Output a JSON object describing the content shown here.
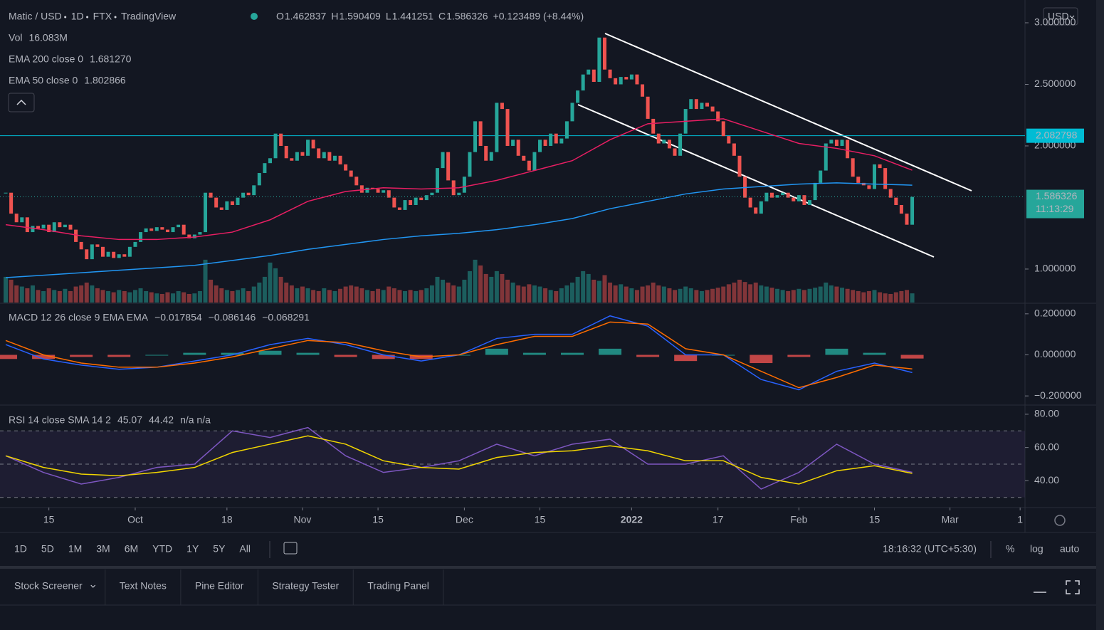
{
  "header": {
    "symbol": "Matic / USD",
    "interval": "1D",
    "exchange": "FTX",
    "source": "TradingView",
    "ohlc": [
      {
        "key": "O",
        "value": "1.462837"
      },
      {
        "key": "H",
        "value": "1.590409"
      },
      {
        "key": "L",
        "value": "1.441251"
      },
      {
        "key": "C",
        "value": "1.586326"
      }
    ],
    "change": "+0.123489 (+8.44%)",
    "currency": "USD"
  },
  "chart_data": {
    "type": "candlestick",
    "xlim": [
      -1.06,
      188.9
    ],
    "xticks": [
      {
        "value": 8,
        "label": "15"
      },
      {
        "value": 24,
        "label": "Oct"
      },
      {
        "value": 41,
        "label": "18"
      },
      {
        "value": 55,
        "label": "Nov"
      },
      {
        "value": 69,
        "label": "15"
      },
      {
        "value": 85,
        "label": "Dec"
      },
      {
        "value": 99,
        "label": "15"
      },
      {
        "value": 116,
        "label": "2022"
      },
      {
        "value": 132,
        "label": "17"
      },
      {
        "value": 147,
        "label": "Feb"
      },
      {
        "value": 161,
        "label": "15"
      },
      {
        "value": 175,
        "label": "Mar"
      },
      {
        "value": 188,
        "label": "1"
      }
    ],
    "ylim": [
      0.728,
      3.185
    ],
    "yticks": [
      {
        "value": 1,
        "label": "1.000000"
      },
      {
        "value": 2,
        "label": "2.000000"
      },
      {
        "value": 2.5,
        "label": "2.500000"
      },
      {
        "value": 3,
        "label": "3.000000"
      }
    ],
    "up_color": "#26a69a",
    "down_color": "#ef5350",
    "close": [
      1.62,
      1.45,
      1.38,
      1.42,
      1.3,
      1.35,
      1.33,
      1.36,
      1.3,
      1.38,
      1.34,
      1.36,
      1.32,
      1.22,
      1.16,
      1.08,
      1.2,
      1.18,
      1.1,
      1.14,
      1.09,
      1.12,
      1.1,
      1.18,
      1.22,
      1.3,
      1.33,
      1.31,
      1.34,
      1.32,
      1.3,
      1.34,
      1.36,
      1.28,
      1.25,
      1.28,
      1.3,
      1.62,
      1.58,
      1.5,
      1.48,
      1.55,
      1.52,
      1.58,
      1.62,
      1.6,
      1.68,
      1.78,
      1.86,
      1.9,
      2.1,
      2.0,
      1.9,
      1.88,
      1.95,
      1.92,
      2.05,
      1.98,
      1.9,
      1.95,
      1.88,
      1.92,
      1.85,
      1.8,
      1.75,
      1.68,
      1.62,
      1.66,
      1.65,
      1.62,
      1.64,
      1.58,
      1.5,
      1.48,
      1.56,
      1.52,
      1.58,
      1.56,
      1.6,
      1.62,
      1.82,
      1.95,
      1.72,
      1.6,
      1.62,
      1.75,
      1.95,
      2.2,
      2.0,
      1.88,
      1.95,
      2.35,
      2.3,
      2.0,
      2.05,
      1.92,
      1.88,
      1.8,
      1.95,
      2.05,
      2.0,
      2.1,
      2.02,
      2.06,
      2.2,
      2.35,
      2.45,
      2.58,
      2.62,
      2.52,
      2.88,
      2.62,
      2.55,
      2.5,
      2.56,
      2.54,
      2.58,
      2.5,
      2.4,
      2.22,
      2.1,
      2.02,
      2.05,
      1.98,
      1.92,
      2.1,
      2.3,
      2.38,
      2.3,
      2.35,
      2.32,
      2.28,
      2.2,
      2.08,
      2.02,
      1.92,
      1.75,
      1.58,
      1.5,
      1.45,
      1.55,
      1.62,
      1.58,
      1.6,
      1.62,
      1.58,
      1.55,
      1.6,
      1.52,
      1.56,
      1.7,
      1.8,
      2.02,
      2.05,
      2.0,
      2.05,
      1.9,
      1.75,
      1.7,
      1.68,
      1.65,
      1.85,
      1.82,
      1.65,
      1.58,
      1.52,
      1.45,
      1.36,
      1.586326
    ],
    "countdown": "11:13:29",
    "hline": 2.082798,
    "volume": {
      "name": "Vol",
      "value_label": "16.083M",
      "ylim": [
        0,
        530
      ],
      "values": [
        45,
        40,
        30,
        28,
        25,
        30,
        22,
        20,
        25,
        22,
        20,
        24,
        20,
        28,
        30,
        35,
        30,
        25,
        22,
        20,
        18,
        22,
        20,
        18,
        22,
        25,
        20,
        18,
        16,
        15,
        18,
        16,
        20,
        18,
        15,
        16,
        20,
        75,
        40,
        30,
        25,
        22,
        20,
        22,
        25,
        20,
        28,
        35,
        45,
        70,
        60,
        45,
        35,
        30,
        25,
        28,
        25,
        22,
        20,
        25,
        22,
        20,
        24,
        28,
        30,
        28,
        25,
        22,
        20,
        24,
        22,
        28,
        25,
        22,
        20,
        22,
        20,
        22,
        25,
        30,
        45,
        40,
        35,
        30,
        28,
        40,
        55,
        75,
        65,
        50,
        45,
        55,
        50,
        40,
        35,
        30,
        28,
        32,
        30,
        28,
        25,
        22,
        20,
        25,
        30,
        35,
        45,
        55,
        50,
        40,
        38,
        48,
        35,
        30,
        32,
        28,
        25,
        22,
        28,
        30,
        35,
        30,
        28,
        25,
        22,
        24,
        28,
        25,
        22,
        20,
        22,
        24,
        26,
        28,
        32,
        35,
        40,
        36,
        32,
        35,
        30,
        28,
        26,
        24,
        22,
        20,
        22,
        24,
        22,
        24,
        26,
        28,
        35,
        30,
        28,
        26,
        24,
        22,
        20,
        18,
        20,
        22,
        18,
        16,
        15,
        18,
        20,
        22,
        16.083
      ]
    },
    "sample_x": [
      0,
      7,
      14,
      21,
      28,
      35,
      42,
      49,
      56,
      63,
      70,
      77,
      84,
      91,
      98,
      105,
      112,
      119,
      126,
      133,
      140,
      147,
      154,
      161,
      168
    ],
    "ema": [
      {
        "name": "EMA 200 close 0",
        "color": "#2196f3",
        "value_label": "1.681270",
        "values": [
          0.93,
          0.95,
          0.97,
          0.99,
          1.01,
          1.03,
          1.07,
          1.11,
          1.16,
          1.2,
          1.24,
          1.27,
          1.29,
          1.32,
          1.36,
          1.41,
          1.49,
          1.55,
          1.61,
          1.65,
          1.67,
          1.69,
          1.7,
          1.69,
          1.68127
        ]
      },
      {
        "name": "EMA 50 close 0",
        "color": "#e91e63",
        "value_label": "1.802866",
        "values": [
          1.36,
          1.32,
          1.27,
          1.24,
          1.24,
          1.26,
          1.3,
          1.4,
          1.55,
          1.63,
          1.66,
          1.65,
          1.66,
          1.72,
          1.8,
          1.88,
          2.05,
          2.18,
          2.2,
          2.22,
          2.12,
          2.02,
          1.98,
          1.92,
          1.802866
        ]
      }
    ],
    "macd": {
      "title": "MACD 12 26 close 9 EMA EMA",
      "ylim": [
        -0.241,
        0.248
      ],
      "yticks": [
        {
          "value": 0.2,
          "label": "0.200000"
        },
        {
          "value": 0,
          "label": "0.000000"
        },
        {
          "value": -0.2,
          "label": "−0.200000"
        }
      ],
      "histogram": {
        "value_label": "−0.017854",
        "values": [
          -0.02,
          -0.02,
          -0.01,
          -0.01,
          0,
          0.01,
          0.01,
          0.02,
          0.01,
          -0.01,
          -0.02,
          -0.02,
          0,
          0.03,
          0.01,
          0.01,
          0.03,
          -0.01,
          -0.03,
          0,
          -0.04,
          -0.01,
          0.03,
          0.01,
          -0.017854
        ]
      },
      "series": [
        {
          "color": "#2962ff",
          "value_label": "−0.086146",
          "values": [
            0.05,
            -0.02,
            -0.05,
            -0.07,
            -0.06,
            -0.03,
            0,
            0.05,
            0.08,
            0.05,
            0,
            -0.03,
            0,
            0.08,
            0.1,
            0.1,
            0.19,
            0.14,
            0,
            0,
            -0.12,
            -0.17,
            -0.08,
            -0.04,
            -0.086146
          ]
        },
        {
          "color": "#ff6d00",
          "value_label": "−0.068291",
          "values": [
            0.07,
            0,
            -0.04,
            -0.06,
            -0.06,
            -0.04,
            -0.01,
            0.03,
            0.07,
            0.06,
            0.02,
            -0.01,
            0,
            0.05,
            0.09,
            0.09,
            0.16,
            0.15,
            0.03,
            0,
            -0.08,
            -0.16,
            -0.11,
            -0.05,
            -0.068291
          ]
        }
      ]
    },
    "rsi": {
      "title": "RSI 14 close SMA 14 2",
      "extra": "n/a n/a",
      "ylim": [
        24.3,
        85.1
      ],
      "yticks": [
        {
          "value": 80,
          "label": "80.00"
        },
        {
          "value": 60,
          "label": "60.00"
        },
        {
          "value": 40,
          "label": "40.00"
        }
      ],
      "band": [
        30,
        70
      ],
      "midline": 50,
      "series": [
        {
          "color": "#7e57c2",
          "value_label": "45.07",
          "values": [
            55,
            45,
            38,
            42,
            48,
            50,
            70,
            66,
            72,
            55,
            45,
            48,
            52,
            62,
            55,
            62,
            65,
            50,
            50,
            55,
            35,
            45,
            62,
            50,
            45.07
          ]
        },
        {
          "color": "#f2d600",
          "value_label": "44.42",
          "values": [
            55,
            48,
            44,
            43,
            45,
            48,
            57,
            62,
            67,
            62,
            52,
            48,
            47,
            54,
            57,
            58,
            61,
            58,
            52,
            52,
            42,
            38,
            46,
            49,
            44.42
          ]
        }
      ]
    }
  },
  "toolbar": {
    "ranges": [
      "1D",
      "5D",
      "1M",
      "3M",
      "6M",
      "YTD",
      "1Y",
      "5Y",
      "All"
    ],
    "clock": "18:16:32 (UTC+5:30)",
    "options": [
      "%",
      "log",
      "auto"
    ]
  },
  "tabs": [
    "Stock Screener",
    "Text Notes",
    "Pine Editor",
    "Strategy Tester",
    "Trading Panel"
  ]
}
